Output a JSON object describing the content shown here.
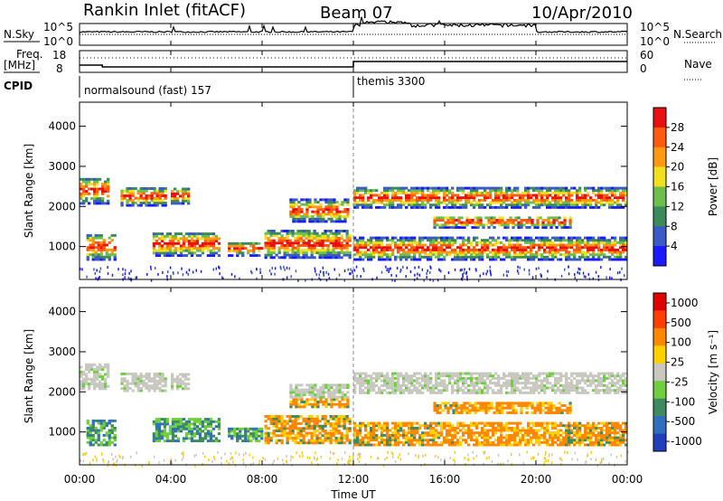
{
  "header": {
    "station": "Rankin Inlet (fitACF)",
    "beam": "Beam 07",
    "date": "10/Apr/2010"
  },
  "top_panel": {
    "left_label": "N.Sky",
    "right_label": "N.Search",
    "left_ticks": [
      "10^5",
      "10^0"
    ],
    "right_ticks": [
      "10^5",
      "10^0"
    ]
  },
  "freq_panel": {
    "left_label_1": "Freq.",
    "left_label_2": "[MHz]",
    "left_ticks": [
      "18",
      "8"
    ],
    "right_label": "Nave",
    "right_ticks": [
      "60",
      "0"
    ]
  },
  "cpid_panel": {
    "label": "CPID",
    "program_1": "normalsound (fast) 157",
    "program_2": "themis 3300",
    "switch_time_hours": 12
  },
  "x_axis": {
    "label": "Time UT",
    "ticks": [
      "00:00",
      "04:00",
      "08:00",
      "12:00",
      "16:00",
      "20:00",
      "00:00"
    ]
  },
  "chart_data": [
    {
      "type": "heatmap",
      "ylabel": "Slant Range [km]",
      "y_ticks": [
        "1000",
        "2000",
        "3000",
        "4000"
      ],
      "ylim": [
        180,
        4600
      ],
      "colorbar": {
        "label": "Power [dB]",
        "ticks": [
          "4",
          "8",
          "12",
          "16",
          "20",
          "24",
          "28"
        ],
        "colors": [
          "#1a1aff",
          "#3a5bc7",
          "#3c8a5a",
          "#6cbf4a",
          "#f0e020",
          "#ff9a10",
          "#ff5a10",
          "#e81010"
        ],
        "range": [
          0,
          32
        ]
      }
    },
    {
      "type": "heatmap",
      "ylabel": "Slant Range [km]",
      "y_ticks": [
        "1000",
        "2000",
        "3000",
        "4000"
      ],
      "ylim": [
        180,
        4600
      ],
      "colorbar": {
        "label": "Velocity [m s⁻¹]",
        "ticks": [
          "1000",
          "500",
          "100",
          "25",
          "-25",
          "-100",
          "-500",
          "-1000"
        ],
        "colors": [
          "#1f3fbf",
          "#2f6fbf",
          "#3f8a5f",
          "#6fcf3f",
          "#c8c8c0",
          "#ffd000",
          "#ff8800",
          "#ff3f00",
          "#e00000"
        ]
      }
    }
  ]
}
